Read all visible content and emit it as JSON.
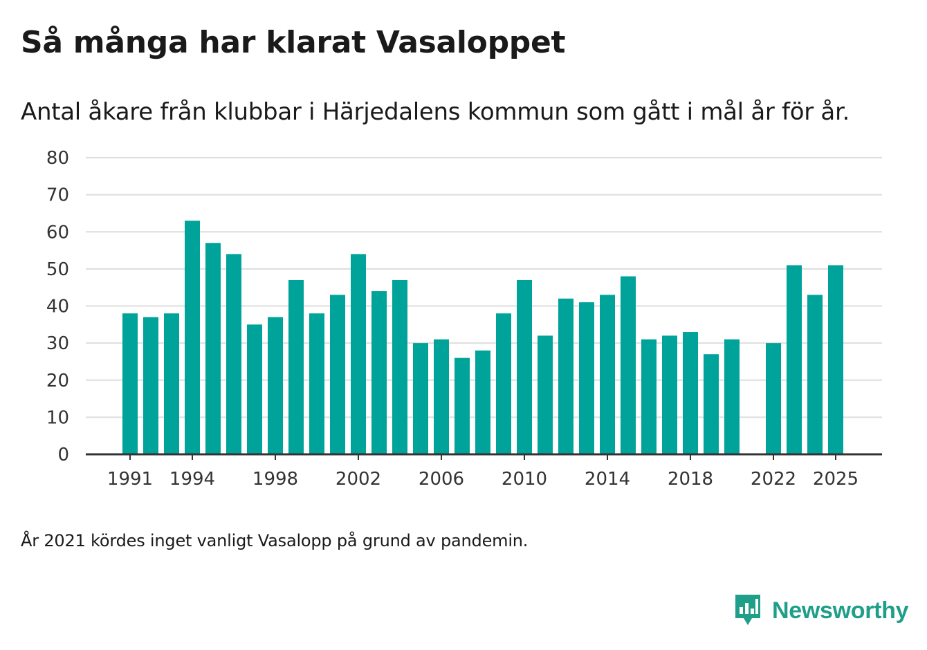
{
  "chart_data": {
    "type": "bar",
    "title": "Så många har klarat Vasaloppet",
    "subtitle": "Antal åkare från klubbar i Härjedalens kommun som gått i mål år för år.",
    "categories": [
      1991,
      1992,
      1993,
      1994,
      1995,
      1996,
      1997,
      1998,
      1999,
      2000,
      2001,
      2002,
      2003,
      2004,
      2005,
      2006,
      2007,
      2008,
      2009,
      2010,
      2011,
      2012,
      2013,
      2014,
      2015,
      2016,
      2017,
      2018,
      2019,
      2020,
      2021,
      2022,
      2023,
      2024,
      2025
    ],
    "values": [
      38,
      37,
      38,
      63,
      57,
      54,
      35,
      37,
      47,
      38,
      43,
      54,
      44,
      47,
      30,
      31,
      26,
      28,
      38,
      47,
      32,
      42,
      41,
      43,
      48,
      31,
      32,
      33,
      27,
      31,
      null,
      30,
      51,
      43,
      51
    ],
    "x_ticks": [
      "1991",
      "1994",
      "1998",
      "2002",
      "2006",
      "2010",
      "2014",
      "2018",
      "2022",
      "2025"
    ],
    "y_ticks": [
      "0",
      "10",
      "20",
      "30",
      "40",
      "50",
      "60",
      "70",
      "80"
    ],
    "ylim": [
      0,
      80
    ],
    "xlabel": "",
    "ylabel": "",
    "grid": true,
    "bar_color": "#00a39a",
    "grid_color": "#dddddd",
    "axis_color": "#333333"
  },
  "footnote": "År 2021 kördes inget vanligt Vasalopp på grund av pandemin.",
  "brand": {
    "name": "Newsworthy",
    "color": "#1f9e8a"
  }
}
